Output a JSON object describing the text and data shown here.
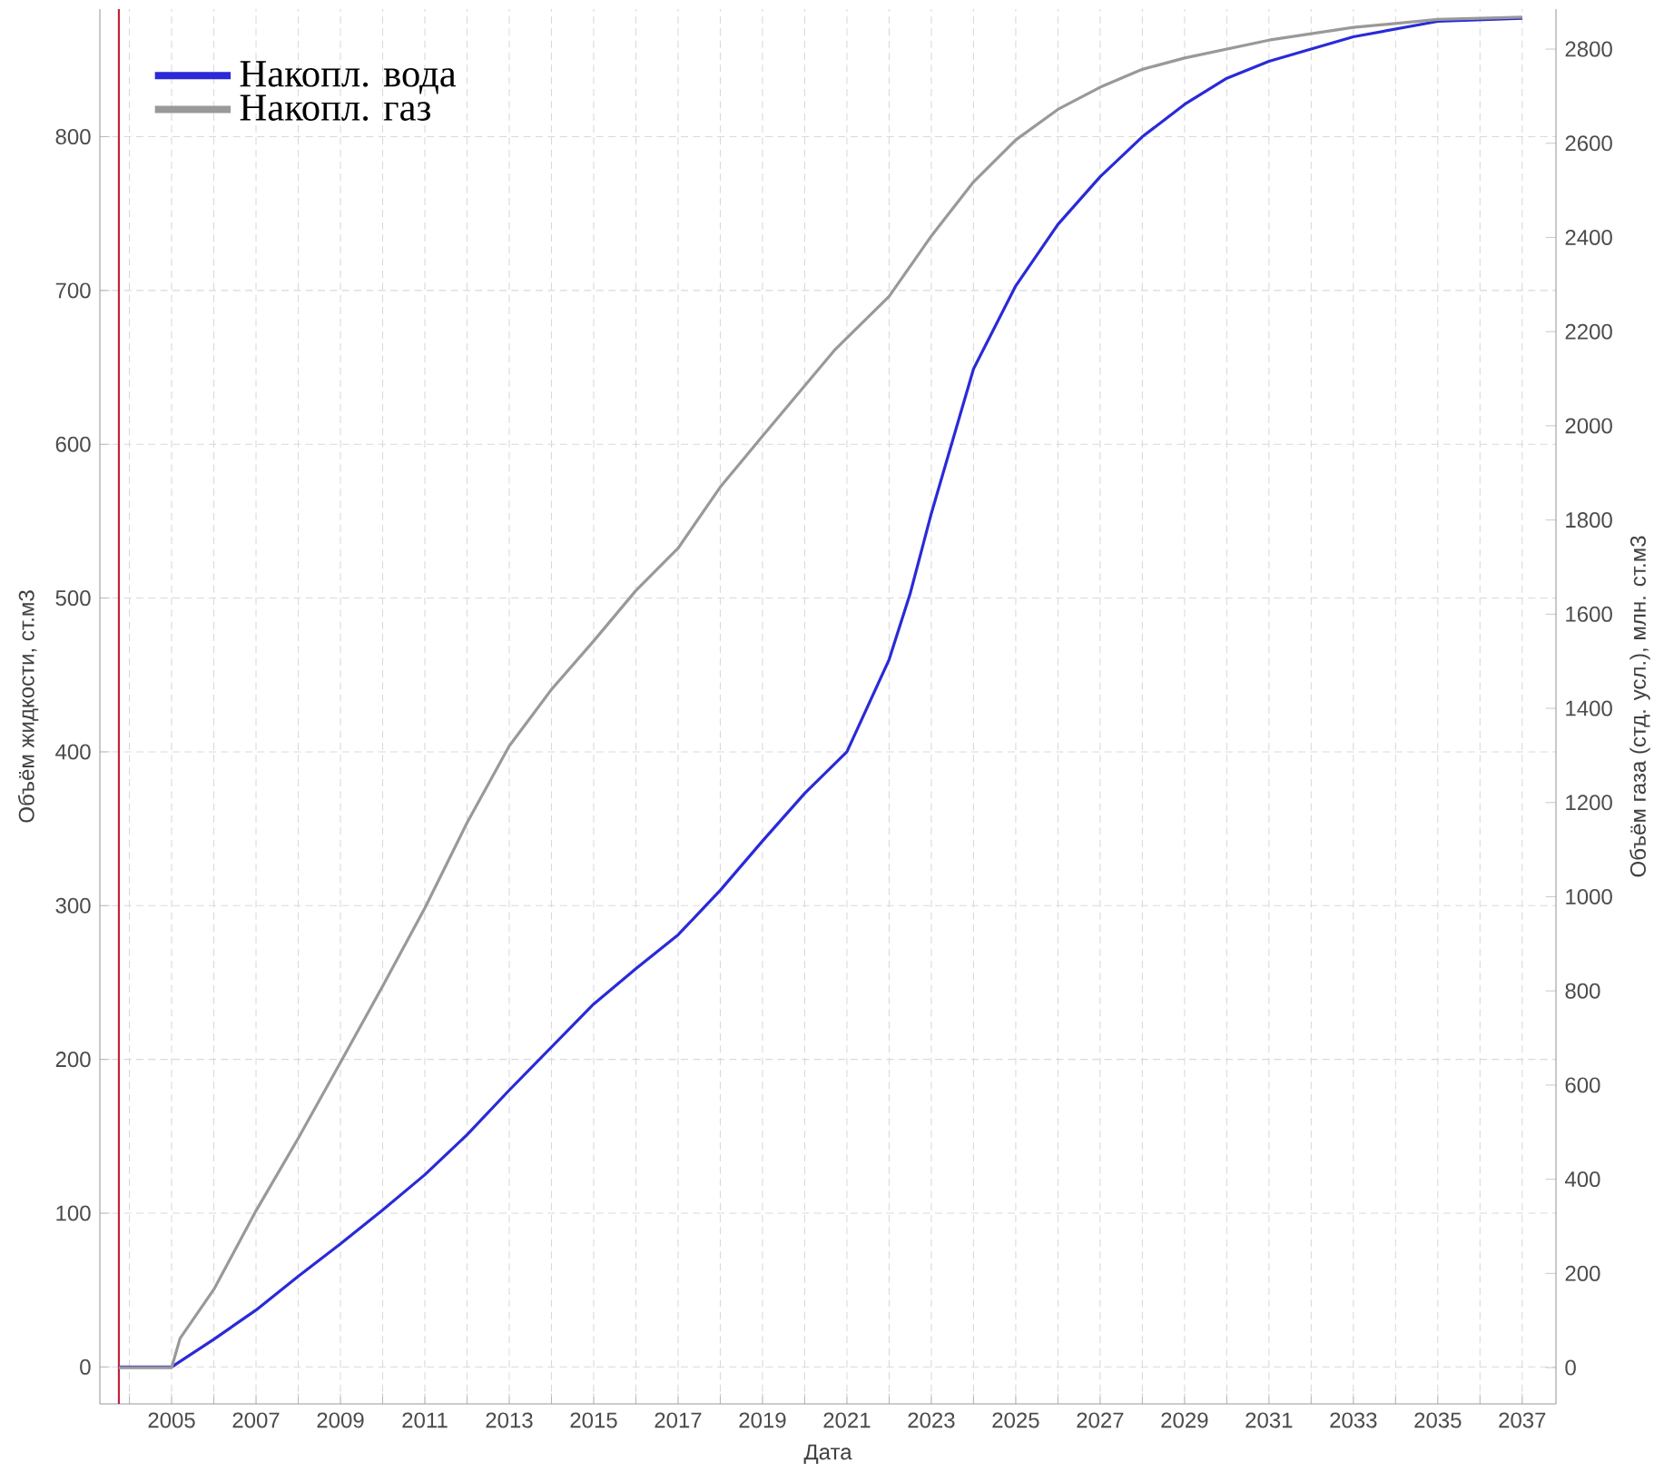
{
  "chart_data": {
    "type": "line",
    "xlabel": "Дата",
    "ylabel": "Объём жидкости, ст.м3",
    "y2label": "Объём газа (стд. усл.), млн. ст.м3",
    "series": [
      {
        "name": "Накопл. вода",
        "color": "#2a2ad8",
        "axis": "y",
        "x": [
          2003.75,
          2005,
          2006,
          2007,
          2008,
          2009,
          2010,
          2011,
          2012,
          2013,
          2014,
          2015,
          2016,
          2017,
          2018,
          2019,
          2020,
          2021,
          2022,
          2022.5,
          2023,
          2024,
          2025,
          2026,
          2027,
          2028,
          2029,
          2030,
          2031,
          2033,
          2035,
          2037
        ],
        "values": [
          0,
          0,
          18,
          37,
          59,
          80,
          102,
          125,
          151,
          180,
          208,
          236,
          259,
          281,
          310,
          342,
          373,
          400,
          460,
          503,
          555,
          649,
          703,
          743,
          774,
          800,
          821,
          838,
          849,
          865,
          875,
          877
        ]
      },
      {
        "name": "Накопл. газ",
        "color": "#999999",
        "axis": "y2",
        "x": [
          2003.75,
          2005,
          2005.2,
          2006,
          2007,
          2008,
          2009,
          2010,
          2011,
          2012,
          2013,
          2014,
          2015,
          2016,
          2017,
          2018,
          2019,
          2020.7,
          2022,
          2023,
          2024,
          2025,
          2026,
          2027,
          2028,
          2029,
          2031,
          2033,
          2035,
          2037
        ],
        "values": [
          0,
          0,
          62,
          166,
          333,
          487,
          648,
          810,
          976,
          1157,
          1320,
          1440,
          1543,
          1650,
          1740,
          1870,
          1978,
          2160,
          2275,
          2403,
          2518,
          2607,
          2672,
          2719,
          2757,
          2781,
          2819,
          2846,
          2863,
          2868
        ]
      }
    ],
    "xlim": [
      2003.3,
      2037.8
    ],
    "xticks": [
      {
        "value": 2004,
        "label": null
      },
      2005,
      {
        "value": 2006,
        "label": null
      },
      2007,
      {
        "value": 2008,
        "label": null
      },
      2009,
      {
        "value": 2010,
        "label": null
      },
      2011,
      {
        "value": 2012,
        "label": null
      },
      2013,
      {
        "value": 2014,
        "label": null
      },
      2015,
      {
        "value": 2016,
        "label": null
      },
      2017,
      {
        "value": 2018,
        "label": null
      },
      2019,
      {
        "value": 2020,
        "label": null
      },
      2021,
      {
        "value": 2022,
        "label": null
      },
      2023,
      {
        "value": 2024,
        "label": null
      },
      2025,
      {
        "value": 2026,
        "label": null
      },
      2027,
      {
        "value": 2028,
        "label": null
      },
      2029,
      {
        "value": 2030,
        "label": null
      },
      2031,
      {
        "value": 2032,
        "label": null
      },
      2033,
      {
        "value": 2034,
        "label": null
      },
      2035,
      {
        "value": 2036,
        "label": null
      },
      2037
    ],
    "ylim": [
      -24,
      883
    ],
    "yticks": [
      0,
      100,
      200,
      300,
      400,
      500,
      600,
      700,
      800
    ],
    "y2lim": [
      -77,
      2885
    ],
    "y2ticks": [
      0,
      200,
      400,
      600,
      800,
      1000,
      1200,
      1400,
      1600,
      1800,
      2000,
      2200,
      2400,
      2600,
      2800
    ],
    "ref_lines": [
      {
        "axis": "x",
        "value": 2003.75,
        "color": "#c0203a"
      }
    ],
    "grid": true,
    "legend": "top left",
    "marker": "none",
    "line_style": "solid"
  }
}
